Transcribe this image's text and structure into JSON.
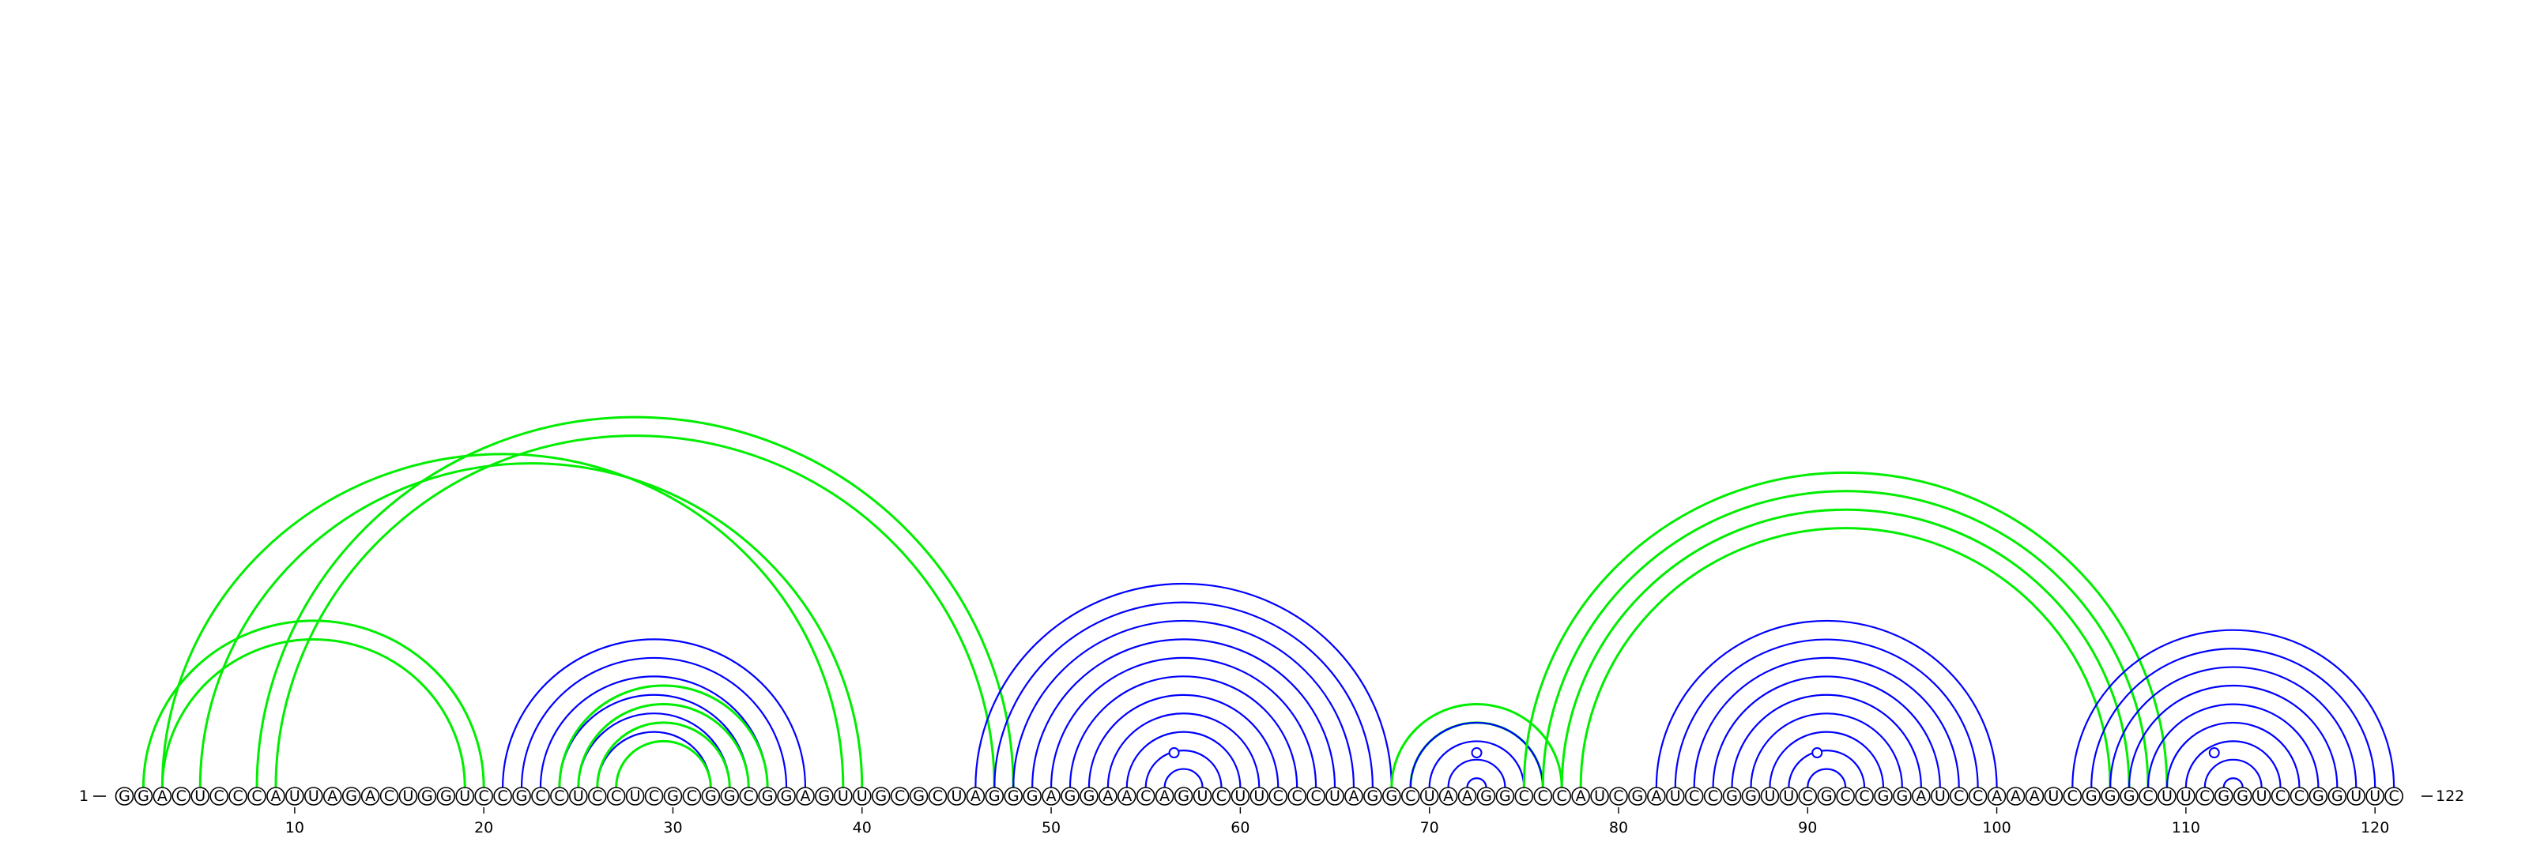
{
  "sequence": "GGACUCCCAUUAGACUGGUCCGCCUCCUCGCGGCGGAGUUGCGCUAGGGAGGAACAGUCUUCCCUAGGCUAAGGCCCAUCGAUCCGGUUCGCCGGAUCCAAAUCGGGCUUCGGUCCGGUUC",
  "length": 122,
  "start_label": "1",
  "end_label": "122",
  "ticks": [
    "10",
    "20",
    "30",
    "40",
    "50",
    "60",
    "70",
    "80",
    "90",
    "100",
    "110",
    "120"
  ],
  "colors": {
    "nested": "#0000ff",
    "pseudoknot": "#00ee00",
    "pseudoknot_b": "#0000ff"
  },
  "helices": [
    {
      "kind": "nested",
      "i": 21,
      "j": 37,
      "n": 6
    },
    {
      "kind": "pseudoknot",
      "i": 24,
      "j": 35,
      "n": 4
    },
    {
      "kind": "pseudoknot",
      "i": 2,
      "j": 20,
      "n": 2
    },
    {
      "kind": "pseudoknot",
      "i": 3,
      "j": 39,
      "n": 1
    },
    {
      "kind": "pseudoknot",
      "i": 5,
      "j": 40,
      "n": 1
    },
    {
      "kind": "pseudoknot",
      "i": 8,
      "j": 48,
      "n": 2
    },
    {
      "kind": "nested",
      "i": 46,
      "j": 68,
      "n": 11
    },
    {
      "kind": "pseudoknot",
      "i": 68,
      "j": 77,
      "n": 2
    },
    {
      "kind": "nested",
      "i": 69,
      "j": 76,
      "n": 4
    },
    {
      "kind": "pseudoknot",
      "i": 75,
      "j": 109,
      "n": 4
    },
    {
      "kind": "nested",
      "i": 82,
      "j": 100,
      "n": 9
    },
    {
      "kind": "nested",
      "i": 104,
      "j": 121,
      "n": 9
    }
  ],
  "gu_loops": [
    56.5,
    72.5,
    90.5,
    111.5
  ]
}
